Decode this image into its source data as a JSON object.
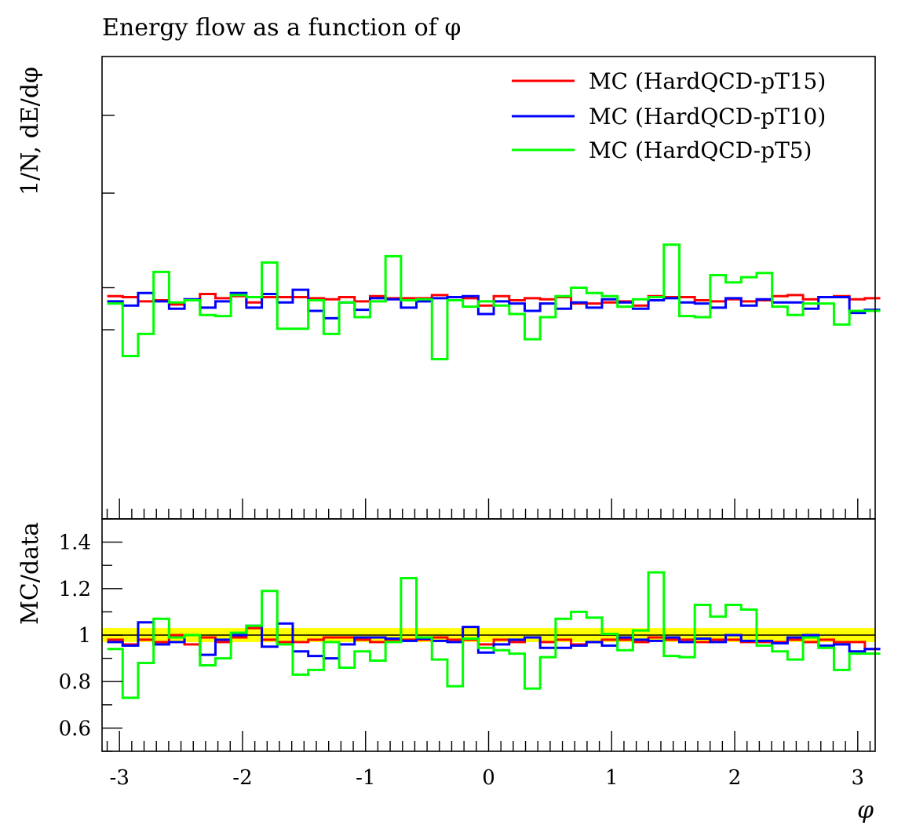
{
  "chart_data": [
    {
      "type": "line",
      "panel": "main",
      "title": "Energy flow as a function of φ",
      "ylabel": "1/N, dE/dφ",
      "xlabel": "",
      "xlim": [
        -3.14159,
        3.14159
      ],
      "ylim": [
        0.0,
        2.2
      ],
      "y_tick_labels_shown": false,
      "grid": false,
      "legend_position": "top-right",
      "x": [
        -3.0369,
        -2.9112,
        -2.7855,
        -2.6599,
        -2.5342,
        -2.4086,
        -2.2829,
        -2.1572,
        -2.0316,
        -1.9059,
        -1.7802,
        -1.6546,
        -1.5289,
        -1.4033,
        -1.2776,
        -1.1519,
        -1.0263,
        -0.9006,
        -0.775,
        -0.6493,
        -0.5236,
        -0.398,
        -0.2723,
        -0.1466,
        -0.021,
        0.1047,
        0.2304,
        0.356,
        0.4817,
        0.6074,
        0.733,
        0.8587,
        0.9844,
        1.11,
        1.2357,
        1.3614,
        1.487,
        1.6127,
        1.7384,
        1.864,
        1.9897,
        2.1153,
        2.241,
        2.3667,
        2.4923,
        2.618,
        2.7437,
        2.8693,
        2.995,
        3.1206
      ],
      "series": [
        {
          "name": "MC (HardQCD-pT15)",
          "color": "#ff0000",
          "values": [
            1.06,
            1.055,
            1.035,
            1.04,
            1.02,
            1.04,
            1.07,
            1.05,
            1.06,
            1.03,
            1.055,
            1.055,
            1.055,
            1.05,
            1.045,
            1.055,
            1.035,
            1.06,
            1.05,
            1.05,
            1.05,
            1.065,
            1.055,
            1.05,
            1.015,
            1.06,
            1.04,
            1.05,
            1.045,
            1.055,
            1.025,
            1.025,
            1.03,
            1.035,
            1.015,
            1.06,
            1.055,
            1.055,
            1.04,
            1.035,
            1.045,
            1.035,
            1.04,
            1.06,
            1.065,
            1.045,
            1.055,
            1.06,
            1.045,
            1.05
          ]
        },
        {
          "name": "MC (HardQCD-pT10)",
          "color": "#0000ff",
          "values": [
            1.035,
            1.015,
            1.075,
            1.035,
            1.0,
            1.045,
            1.005,
            1.035,
            1.075,
            1.005,
            1.07,
            1.03,
            1.09,
            0.99,
            0.955,
            1.03,
            0.995,
            1.05,
            1.045,
            1.005,
            1.035,
            1.05,
            1.055,
            1.06,
            0.975,
            1.035,
            1.025,
            0.99,
            1.025,
            1.0,
            1.03,
            1.005,
            1.045,
            1.03,
            1.0,
            1.04,
            1.05,
            1.03,
            1.025,
            1.005,
            1.05,
            1.015,
            1.045,
            1.03,
            1.03,
            1.0,
            1.055,
            1.055,
            0.98,
            0.995
          ]
        },
        {
          "name": "MC (HardQCD-pT5)",
          "color": "#00ff00",
          "values": [
            1.025,
            0.775,
            0.88,
            1.175,
            1.03,
            1.04,
            0.97,
            0.965,
            1.065,
            1.055,
            1.22,
            0.905,
            0.905,
            1.04,
            0.88,
            1.03,
            0.96,
            1.035,
            1.25,
            1.04,
            1.045,
            0.76,
            1.04,
            1.01,
            1.035,
            1.015,
            0.975,
            0.855,
            0.96,
            1.06,
            1.1,
            1.075,
            1.06,
            1.01,
            1.045,
            1.055,
            1.305,
            0.965,
            0.96,
            1.16,
            1.125,
            1.15,
            1.17,
            1.01,
            0.97,
            1.025,
            1.025,
            0.925,
            0.99,
            0.99
          ]
        }
      ]
    },
    {
      "type": "line",
      "panel": "ratio",
      "title": "",
      "ylabel": "MC/data",
      "xlabel": "φ",
      "xlim": [
        -3.14159,
        3.14159
      ],
      "ylim": [
        0.5,
        1.5
      ],
      "y_ticks": [
        0.6,
        0.8,
        1,
        1.2,
        1.4
      ],
      "y_tick_labels": [
        "0.6",
        "0.8",
        "1",
        "1.2",
        "1.4"
      ],
      "x_ticks": [
        -3,
        -2,
        -1,
        0,
        1,
        2,
        3
      ],
      "x_tick_labels": [
        "-3",
        "-2",
        "-1",
        "0",
        "1",
        "2",
        "3"
      ],
      "reference_line": 1.0,
      "reference_band": [
        0.97,
        1.03
      ],
      "reference_band_color": "#ffff00",
      "grid": false,
      "x": [
        -3.0369,
        -2.9112,
        -2.7855,
        -2.6599,
        -2.5342,
        -2.4086,
        -2.2829,
        -2.1572,
        -2.0316,
        -1.9059,
        -1.7802,
        -1.6546,
        -1.5289,
        -1.4033,
        -1.2776,
        -1.1519,
        -1.0263,
        -0.9006,
        -0.775,
        -0.6493,
        -0.5236,
        -0.398,
        -0.2723,
        -0.1466,
        -0.021,
        0.1047,
        0.2304,
        0.356,
        0.4817,
        0.6074,
        0.733,
        0.8587,
        0.9844,
        1.11,
        1.2357,
        1.3614,
        1.487,
        1.6127,
        1.7384,
        1.864,
        1.9897,
        2.1153,
        2.241,
        2.3667,
        2.4923,
        2.618,
        2.7437,
        2.8693,
        2.995,
        3.1206
      ],
      "series": [
        {
          "name": "MC (HardQCD-pT15)",
          "color": "#ff0000",
          "values": [
            0.98,
            0.96,
            0.98,
            0.97,
            1.0,
            0.96,
            0.99,
            0.97,
            0.99,
            1.03,
            0.98,
            0.97,
            0.97,
            0.98,
            0.99,
            0.99,
            0.98,
            0.97,
            0.98,
            0.98,
            0.98,
            0.99,
            0.98,
            0.98,
            0.96,
            0.98,
            0.97,
            0.99,
            0.97,
            0.98,
            0.96,
            0.97,
            0.98,
            0.98,
            0.97,
            0.99,
            0.98,
            0.98,
            0.97,
            0.98,
            0.98,
            0.97,
            0.97,
            0.97,
            0.98,
            0.97,
            0.98,
            0.97,
            0.97,
            0.94
          ]
        },
        {
          "name": "MC (HardQCD-pT10)",
          "color": "#0000ff",
          "values": [
            0.97,
            0.955,
            1.055,
            0.96,
            0.97,
            1.0,
            0.915,
            0.98,
            1.0,
            1.04,
            0.95,
            1.05,
            0.93,
            0.91,
            0.9,
            0.96,
            0.99,
            0.99,
            0.985,
            0.975,
            0.985,
            0.975,
            0.97,
            1.035,
            0.925,
            0.96,
            0.98,
            0.99,
            0.945,
            0.945,
            0.955,
            0.97,
            0.955,
            0.99,
            0.98,
            0.975,
            0.99,
            0.97,
            0.985,
            0.97,
            1.0,
            0.975,
            0.975,
            0.965,
            0.99,
            1.0,
            0.955,
            0.96,
            0.93,
            0.94
          ]
        },
        {
          "name": "MC (HardQCD-pT5)",
          "color": "#00ff00",
          "values": [
            0.94,
            0.73,
            0.88,
            1.07,
            0.99,
            1.0,
            0.87,
            0.9,
            1.01,
            1.04,
            1.19,
            0.96,
            0.83,
            0.85,
            0.97,
            0.86,
            0.93,
            0.89,
            0.97,
            1.245,
            0.99,
            0.895,
            0.78,
            0.985,
            0.945,
            0.935,
            0.92,
            0.77,
            0.905,
            1.07,
            1.1,
            1.075,
            1.005,
            0.935,
            1.02,
            1.27,
            0.91,
            0.905,
            1.13,
            1.08,
            1.13,
            1.11,
            0.955,
            0.93,
            0.895,
            0.99,
            0.945,
            0.85,
            0.92,
            0.92
          ]
        }
      ]
    }
  ]
}
